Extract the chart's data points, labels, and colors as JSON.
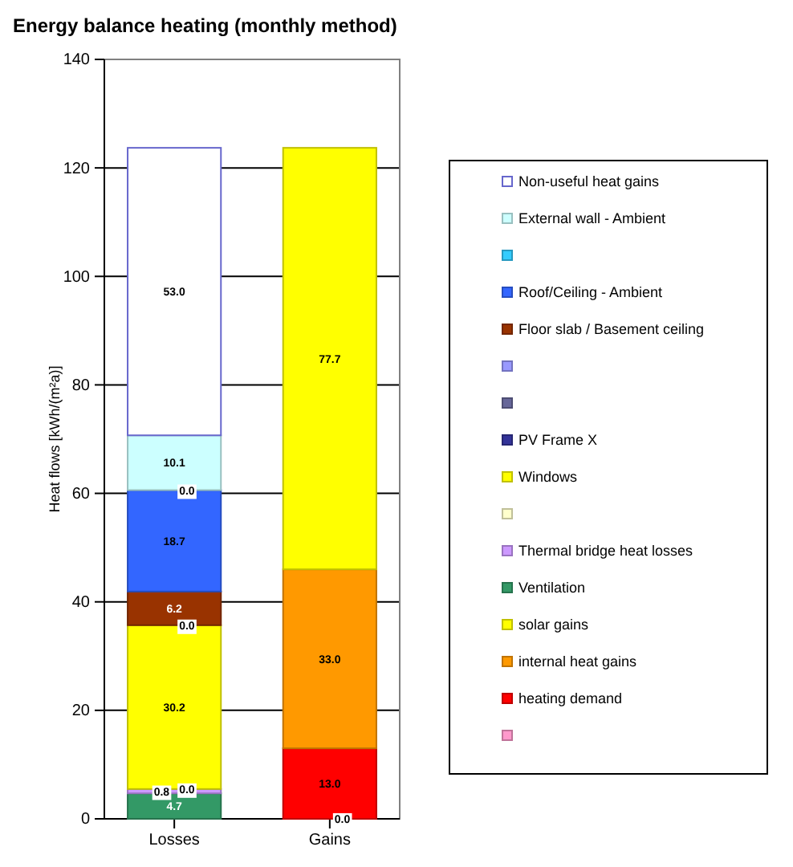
{
  "chart_data": {
    "type": "bar",
    "stacked": true,
    "title": "Energy balance heating (monthly method)",
    "ylabel": "Heat flows [kWh/(m²a)]",
    "annotations": [
      {
        "text": "0.0",
        "x": "Losses",
        "y": 5.5
      },
      {
        "text": "0.0",
        "x": "Losses",
        "y": 35.7
      },
      {
        "text": "0.0",
        "x": "Losses",
        "y": 60.6
      },
      {
        "text": "0.0",
        "x": "Gains",
        "y": 0
      }
    ],
    "categories": [
      "Losses",
      "Gains"
    ],
    "ylim": [
      0,
      140
    ],
    "yticks": [
      0,
      20,
      40,
      60,
      80,
      100,
      120,
      140
    ],
    "grid": "y",
    "legend": "right",
    "series": [
      {
        "color": "#ff99cc",
        "values": [
          null,
          0.0
        ]
      },
      {
        "name": "heating demand",
        "color": "#ff0000",
        "values": [
          null,
          13.0
        ],
        "value_labels": [
          null,
          "13.0"
        ]
      },
      {
        "name": "internal heat gains",
        "color": "#ff9900",
        "values": [
          null,
          33.0
        ],
        "value_labels": [
          null,
          "33.0"
        ]
      },
      {
        "name": "solar gains",
        "color": "#ffff00",
        "values": [
          null,
          77.7
        ],
        "value_labels": [
          null,
          "77.7"
        ]
      },
      {
        "name": "Ventilation",
        "color": "#339966",
        "values": [
          4.7,
          null
        ],
        "value_labels": [
          "4.7",
          null
        ]
      },
      {
        "name": "Thermal bridge heat losses",
        "color": "#cc99ff",
        "values": [
          0.8,
          null
        ],
        "value_labels": [
          "0.8",
          null
        ]
      },
      {
        "color": "#ffffcc",
        "values": [
          0.0,
          null
        ]
      },
      {
        "name": "Windows",
        "color": "#ffff00",
        "values": [
          30.2,
          null
        ],
        "value_labels": [
          "30.2",
          null
        ]
      },
      {
        "name": "PV Frame X",
        "color": "#333399",
        "values": [
          0.0,
          null
        ]
      },
      {
        "color": "#666699",
        "values": [
          null,
          null
        ]
      },
      {
        "color": "#9999ff",
        "values": [
          null,
          null
        ]
      },
      {
        "name": "Floor slab / Basement ceiling",
        "color": "#993300",
        "values": [
          6.2,
          null
        ],
        "value_labels": [
          "6.2",
          null
        ]
      },
      {
        "name": "Roof/Ceiling - Ambient",
        "color": "#3366ff",
        "values": [
          18.7,
          null
        ],
        "value_labels": [
          "18.7",
          null
        ]
      },
      {
        "color": "#33ccff",
        "values": [
          0.0,
          null
        ]
      },
      {
        "name": "External wall - Ambient",
        "color": "#ccffff",
        "values": [
          10.1,
          null
        ],
        "value_labels": [
          "10.1",
          null
        ]
      },
      {
        "name": "Non-useful heat gains",
        "color": "#ffffff",
        "values": [
          53.0,
          null
        ],
        "value_labels": [
          "53.0",
          null
        ]
      }
    ]
  }
}
